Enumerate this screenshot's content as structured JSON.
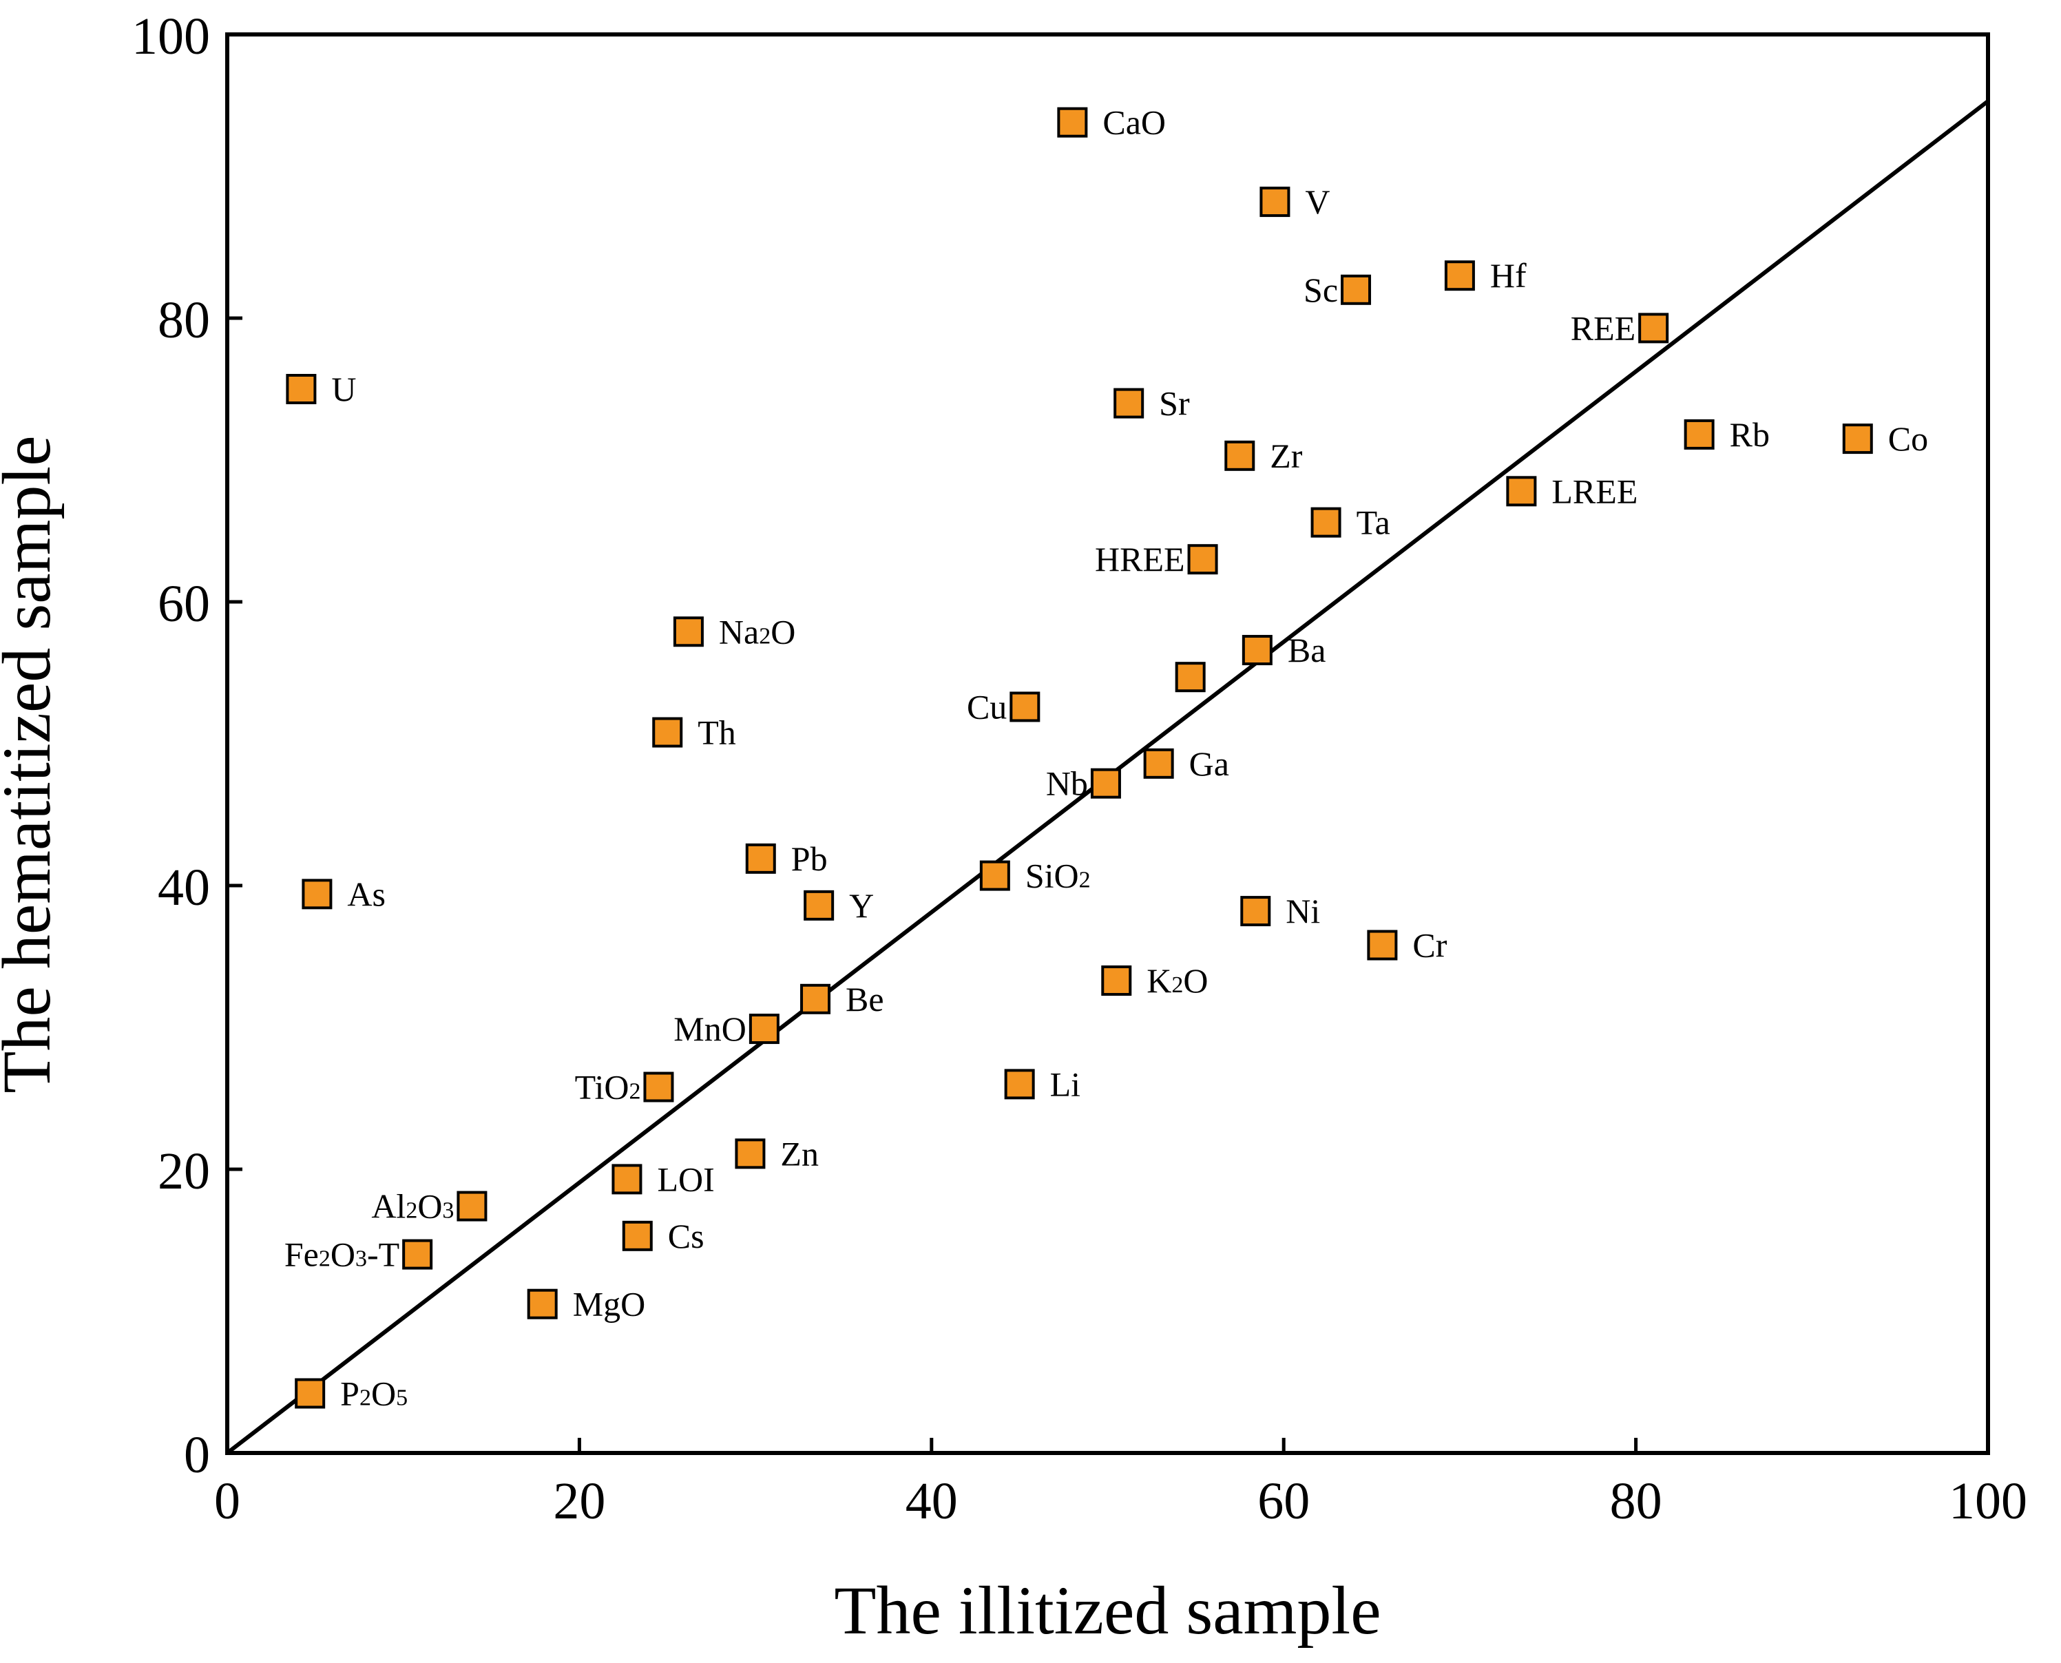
{
  "chart_data": {
    "type": "scatter",
    "title": "",
    "xlabel": "The illitized sample",
    "ylabel": "The hematitized sample",
    "xlim": [
      0,
      100
    ],
    "ylim": [
      0,
      100
    ],
    "xticks": [
      0,
      20,
      40,
      60,
      80,
      100
    ],
    "yticks": [
      0,
      20,
      40,
      60,
      80,
      100
    ],
    "grid": false,
    "marker_color": "#F39420",
    "marker_edge_color": "#000000",
    "reference_line": {
      "name": "1:1 trend line",
      "from": [
        0,
        0
      ],
      "to": [
        100,
        95.3
      ],
      "color": "#000000"
    },
    "points": [
      {
        "label": "CaO",
        "rich": [
          [
            "Ca",
            0
          ],
          [
            "O",
            0
          ]
        ],
        "x": 48.0,
        "y": 93.8,
        "side": "right"
      },
      {
        "label": "V",
        "rich": [
          [
            "V",
            0
          ]
        ],
        "x": 59.5,
        "y": 88.2,
        "side": "right"
      },
      {
        "label": "Sc",
        "rich": [
          [
            "Sc",
            0
          ]
        ],
        "x": 64.1,
        "y": 82.0,
        "side": "left"
      },
      {
        "label": "Hf",
        "rich": [
          [
            "Hf",
            0
          ]
        ],
        "x": 70.0,
        "y": 83.0,
        "side": "right"
      },
      {
        "label": "REE",
        "rich": [
          [
            "REE",
            0
          ]
        ],
        "x": 81.0,
        "y": 79.3,
        "side": "left"
      },
      {
        "label": "U",
        "rich": [
          [
            "U",
            0
          ]
        ],
        "x": 4.2,
        "y": 75.0,
        "side": "right"
      },
      {
        "label": "Sr",
        "rich": [
          [
            "Sr",
            0
          ]
        ],
        "x": 51.2,
        "y": 74.0,
        "side": "right"
      },
      {
        "label": "Rb",
        "rich": [
          [
            "Rb",
            0
          ]
        ],
        "x": 83.6,
        "y": 71.8,
        "side": "right"
      },
      {
        "label": "Co",
        "rich": [
          [
            "Co",
            0
          ]
        ],
        "x": 92.6,
        "y": 71.5,
        "side": "right"
      },
      {
        "label": "Zr",
        "rich": [
          [
            "Zr",
            0
          ]
        ],
        "x": 57.5,
        "y": 70.3,
        "side": "right"
      },
      {
        "label": "LREE",
        "rich": [
          [
            "LREE",
            0
          ]
        ],
        "x": 73.5,
        "y": 67.8,
        "side": "right"
      },
      {
        "label": "Ta",
        "rich": [
          [
            "Ta",
            0
          ]
        ],
        "x": 62.4,
        "y": 65.6,
        "side": "right"
      },
      {
        "label": "HREE",
        "rich": [
          [
            "HREE",
            0
          ]
        ],
        "x": 55.4,
        "y": 63.0,
        "side": "left"
      },
      {
        "label": "Na2O",
        "rich": [
          [
            "Na",
            0
          ],
          [
            "2",
            1
          ],
          [
            "O",
            0
          ]
        ],
        "x": 26.2,
        "y": 57.9,
        "side": "right"
      },
      {
        "label": "Ba",
        "rich": [
          [
            "Ba",
            0
          ]
        ],
        "x": 58.5,
        "y": 56.6,
        "side": "right"
      },
      {
        "label": "",
        "rich": [],
        "x": 54.7,
        "y": 54.7,
        "side": "right"
      },
      {
        "label": "Cu",
        "rich": [
          [
            "Cu",
            0
          ]
        ],
        "x": 45.3,
        "y": 52.6,
        "side": "left"
      },
      {
        "label": "Th",
        "rich": [
          [
            "Th",
            0
          ]
        ],
        "x": 25.0,
        "y": 50.8,
        "side": "right"
      },
      {
        "label": "Ga",
        "rich": [
          [
            "Ga",
            0
          ]
        ],
        "x": 52.9,
        "y": 48.6,
        "side": "right"
      },
      {
        "label": "Nb",
        "rich": [
          [
            "Nb",
            0
          ]
        ],
        "x": 49.9,
        "y": 47.2,
        "side": "left"
      },
      {
        "label": "Pb",
        "rich": [
          [
            "Pb",
            0
          ]
        ],
        "x": 30.3,
        "y": 41.9,
        "side": "right"
      },
      {
        "label": "SiO2",
        "rich": [
          [
            "Si",
            0
          ],
          [
            "O",
            0
          ],
          [
            "2",
            1
          ]
        ],
        "x": 43.6,
        "y": 40.7,
        "side": "right"
      },
      {
        "label": "As",
        "rich": [
          [
            "As",
            0
          ]
        ],
        "x": 5.1,
        "y": 39.4,
        "side": "right"
      },
      {
        "label": "Y",
        "rich": [
          [
            "Y",
            0
          ]
        ],
        "x": 33.6,
        "y": 38.6,
        "side": "right"
      },
      {
        "label": "Ni",
        "rich": [
          [
            "Ni",
            0
          ]
        ],
        "x": 58.4,
        "y": 38.2,
        "side": "right"
      },
      {
        "label": "Cr",
        "rich": [
          [
            "Cr",
            0
          ]
        ],
        "x": 65.6,
        "y": 35.8,
        "side": "right"
      },
      {
        "label": "K2O",
        "rich": [
          [
            "K",
            0
          ],
          [
            "2",
            1
          ],
          [
            "O",
            0
          ]
        ],
        "x": 50.5,
        "y": 33.3,
        "side": "right"
      },
      {
        "label": "Be",
        "rich": [
          [
            "Be",
            0
          ]
        ],
        "x": 33.4,
        "y": 32.0,
        "side": "right"
      },
      {
        "label": "MnO",
        "rich": [
          [
            "MnO",
            0
          ]
        ],
        "x": 30.5,
        "y": 29.9,
        "side": "left"
      },
      {
        "label": "TiO2",
        "rich": [
          [
            "Ti",
            0
          ],
          [
            "O",
            0
          ],
          [
            "2",
            1
          ]
        ],
        "x": 24.5,
        "y": 25.8,
        "side": "left"
      },
      {
        "label": "Li",
        "rich": [
          [
            "Li",
            0
          ]
        ],
        "x": 45.0,
        "y": 26.0,
        "side": "right"
      },
      {
        "label": "Zn",
        "rich": [
          [
            "Zn",
            0
          ]
        ],
        "x": 29.7,
        "y": 21.1,
        "side": "right"
      },
      {
        "label": "LOI",
        "rich": [
          [
            "LOI",
            0
          ]
        ],
        "x": 22.7,
        "y": 19.3,
        "side": "right"
      },
      {
        "label": "Al2O3",
        "rich": [
          [
            "Al",
            0
          ],
          [
            "2",
            1
          ],
          [
            "O",
            0
          ],
          [
            "3",
            1
          ]
        ],
        "x": 13.9,
        "y": 17.4,
        "side": "left"
      },
      {
        "label": "Cs",
        "rich": [
          [
            "Cs",
            0
          ]
        ],
        "x": 23.3,
        "y": 15.3,
        "side": "right"
      },
      {
        "label": "Fe2O3-T",
        "rich": [
          [
            "Fe",
            0
          ],
          [
            "2",
            1
          ],
          [
            "O",
            0
          ],
          [
            "3",
            1
          ],
          [
            "-T",
            0
          ]
        ],
        "x": 10.8,
        "y": 14.0,
        "side": "left"
      },
      {
        "label": "MgO",
        "rich": [
          [
            "MgO",
            0
          ]
        ],
        "x": 17.9,
        "y": 10.5,
        "side": "right"
      },
      {
        "label": "P2O5",
        "rich": [
          [
            "P",
            0
          ],
          [
            "2",
            1
          ],
          [
            "O",
            0
          ],
          [
            "5",
            1
          ]
        ],
        "x": 4.7,
        "y": 4.2,
        "side": "right"
      }
    ]
  }
}
